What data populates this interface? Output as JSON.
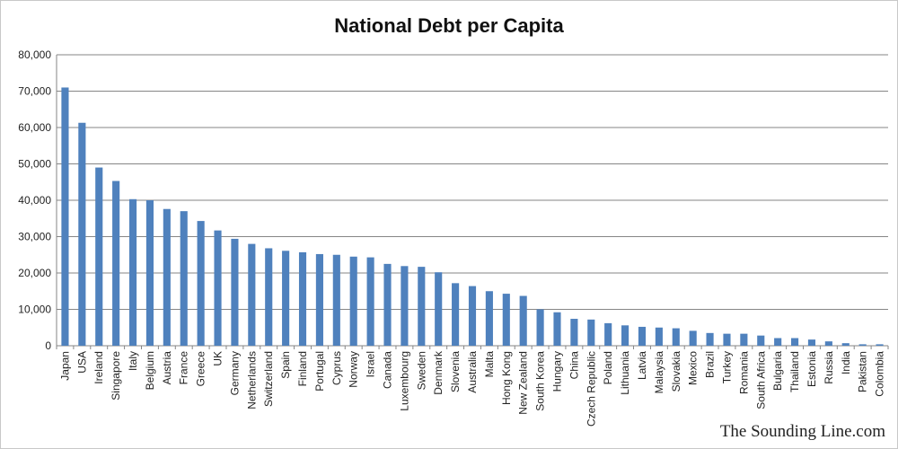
{
  "chart_data": {
    "type": "bar",
    "title": "National Debt per Capita",
    "xlabel": "",
    "ylabel": "",
    "ylim": [
      0,
      80000
    ],
    "yticks": [
      "0",
      "10,000",
      "20,000",
      "30,000",
      "40,000",
      "50,000",
      "60,000",
      "70,000",
      "80,000"
    ],
    "grid": true,
    "legend": "none",
    "bar_color": "#4f81bd",
    "categories": [
      "Japan",
      "USA",
      "Ireland",
      "Singapore",
      "Italy",
      "Belgium",
      "Austria",
      "France",
      "Greece",
      "UK",
      "Germany",
      "Netherlands",
      "Switzerland",
      "Spain",
      "Finland",
      "Portugal",
      "Cyprus",
      "Norway",
      "Israel",
      "Canada",
      "Luxembourg",
      "Sweden",
      "Denmark",
      "Slovenia",
      "Australia",
      "Malta",
      "Hong Kong",
      "New Zealand",
      "South Korea",
      "Hungary",
      "China",
      "Czech Republic",
      "Poland",
      "Lithuania",
      "Latvia",
      "Malaysia",
      "Slovakia",
      "Mexico",
      "Brazil",
      "Turkey",
      "Romania",
      "South Africa",
      "Bulgaria",
      "Thailand",
      "Estonia",
      "Russia",
      "India",
      "Pakistan",
      "Colombia"
    ],
    "values": [
      71000,
      61300,
      49000,
      45300,
      40300,
      40000,
      37600,
      37000,
      34300,
      31700,
      29400,
      28000,
      26800,
      26100,
      25700,
      25200,
      25000,
      24500,
      24300,
      22500,
      21900,
      21700,
      20200,
      17200,
      16400,
      15000,
      14300,
      13700,
      10000,
      9200,
      7400,
      7200,
      6200,
      5600,
      5200,
      5000,
      4800,
      4100,
      3500,
      3300,
      3300,
      2800,
      2100,
      2100,
      1700,
      1200,
      700,
      400,
      400
    ]
  },
  "watermark": "The Sounding Line.com"
}
